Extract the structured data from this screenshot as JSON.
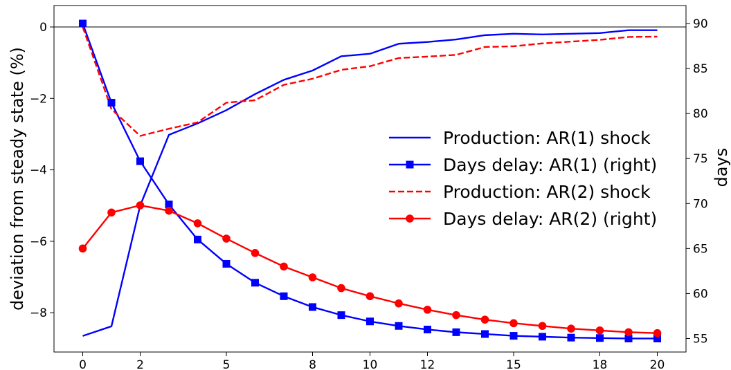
{
  "chart_data": {
    "type": "line",
    "x": [
      0,
      1,
      2,
      3,
      4,
      5,
      6,
      7,
      8,
      9,
      10,
      11,
      12,
      13,
      14,
      15,
      16,
      17,
      18,
      19,
      20
    ],
    "xticks": [
      0,
      2,
      5,
      8,
      10,
      12,
      15,
      18,
      20
    ],
    "xlim": [
      -1,
      21
    ],
    "ylabel": "deviation from steady state (%)",
    "ylim": [
      -9.1,
      0.6
    ],
    "yticks": [
      0,
      -2,
      -4,
      -6,
      -8
    ],
    "y2label": "days",
    "y2lim": [
      53.5,
      92
    ],
    "y2ticks": [
      55,
      60,
      65,
      70,
      75,
      80,
      85,
      90
    ],
    "zero_line": 0,
    "grid": false,
    "legend_position": "center-right",
    "series": [
      {
        "name": "Production: AR(1) shock",
        "axis": "left",
        "color": "#0000ff",
        "style": "solid",
        "marker": "none",
        "values": [
          -8.65,
          -8.38,
          -5.0,
          -3.02,
          -2.7,
          -2.33,
          -1.88,
          -1.48,
          -1.22,
          -0.82,
          -0.75,
          -0.47,
          -0.42,
          -0.35,
          -0.23,
          -0.19,
          -0.21,
          -0.19,
          -0.17,
          -0.09,
          -0.09
        ]
      },
      {
        "name": "Days delay: AR(1) (right)",
        "axis": "right",
        "color": "#0000ff",
        "style": "solid",
        "marker": "square",
        "values": [
          90.0,
          81.2,
          74.7,
          69.9,
          66.0,
          63.3,
          61.2,
          59.7,
          58.5,
          57.6,
          56.9,
          56.4,
          56.0,
          55.7,
          55.5,
          55.3,
          55.2,
          55.1,
          55.05,
          55.0,
          55.0
        ]
      },
      {
        "name": "Production: AR(2) shock",
        "axis": "left",
        "color": "#ff0000",
        "style": "dashed",
        "marker": "none",
        "values": [
          0.0,
          -2.3,
          -3.05,
          -2.85,
          -2.67,
          -2.12,
          -2.05,
          -1.62,
          -1.45,
          -1.2,
          -1.1,
          -0.87,
          -0.83,
          -0.78,
          -0.56,
          -0.54,
          -0.46,
          -0.41,
          -0.36,
          -0.28,
          -0.27
        ]
      },
      {
        "name": "Days delay: AR(2) (right)",
        "axis": "right",
        "color": "#ff0000",
        "style": "solid",
        "marker": "circle",
        "values": [
          65.0,
          69.0,
          69.8,
          69.2,
          67.8,
          66.1,
          64.5,
          63.0,
          61.8,
          60.6,
          59.7,
          58.9,
          58.2,
          57.6,
          57.1,
          56.7,
          56.4,
          56.1,
          55.9,
          55.7,
          55.6
        ]
      }
    ]
  }
}
